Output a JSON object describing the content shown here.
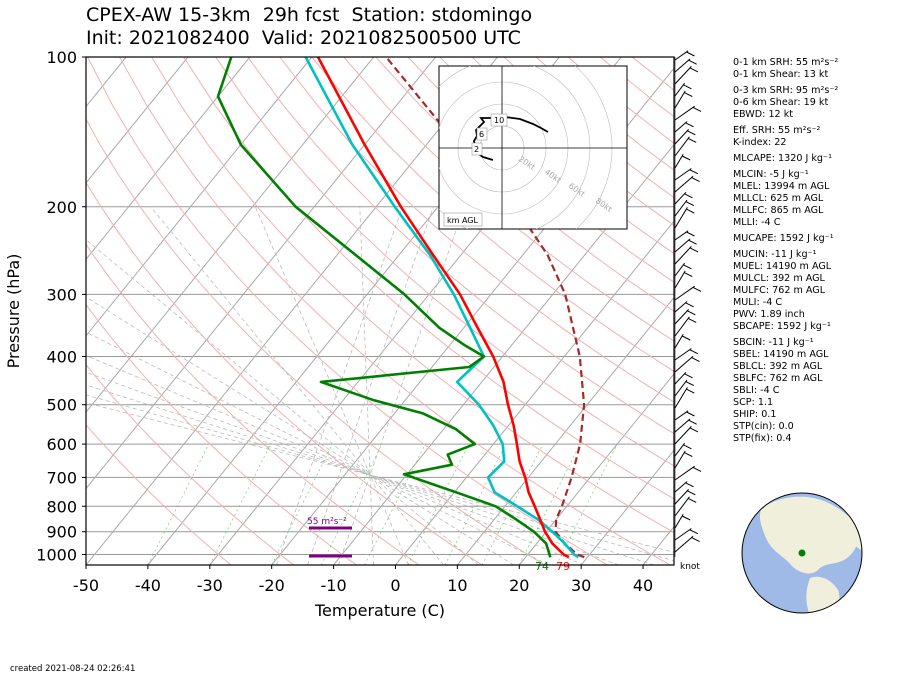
{
  "header": {
    "title_line1": "CPEX-AW 15-3km  29h fcst  Station: stdomingo",
    "title_line2": "Init: 2021082400  Valid: 2021082500500 UTC"
  },
  "footer": {
    "created": "created 2021-08-24 02:26:41"
  },
  "stats": [
    {
      "label": "0-1 km SRH: 55 m²s⁻²"
    },
    {
      "label": "0-1 km Shear: 13 kt"
    },
    {
      "label": "0-3 km SRH: 95 m²s⁻²",
      "gap": true
    },
    {
      "label": "0-6 km Shear: 19 kt"
    },
    {
      "label": "EBWD: 12 kt"
    },
    {
      "label": "Eff. SRH: 55 m²s⁻²",
      "gap": true
    },
    {
      "label": "K-index: 22"
    },
    {
      "label": "MLCAPE: 1320 J kg⁻¹",
      "gap": true
    },
    {
      "label": "MLCIN: -5 J kg⁻¹",
      "gap": true
    },
    {
      "label": "MLEL: 13994 m AGL"
    },
    {
      "label": "MLLCL: 625 m AGL"
    },
    {
      "label": "MLLFC: 865 m AGL"
    },
    {
      "label": "MLLI: -4 C"
    },
    {
      "label": "MUCAPE: 1592 J kg⁻¹",
      "gap": true
    },
    {
      "label": "MUCIN: -11 J kg⁻¹",
      "gap": true
    },
    {
      "label": "MUEL: 14190 m AGL"
    },
    {
      "label": "MULCL: 392 m AGL"
    },
    {
      "label": "MULFC: 762 m AGL"
    },
    {
      "label": "MULI: -4 C"
    },
    {
      "label": "PWV: 1.89 inch"
    },
    {
      "label": "SBCAPE: 1592 J kg⁻¹"
    },
    {
      "label": "SBCIN: -11 J kg⁻¹",
      "gap": true
    },
    {
      "label": "SBEL: 14190 m AGL"
    },
    {
      "label": "SBLCL: 392 m AGL"
    },
    {
      "label": "SBLFC: 762 m AGL"
    },
    {
      "label": "SBLI: -4 C"
    },
    {
      "label": "SCP: 1.1"
    },
    {
      "label": "SHIP: 0.1"
    },
    {
      "label": "STP(cin): 0.0"
    },
    {
      "label": "STP(fix): 0.4"
    }
  ],
  "chart_data": {
    "type": "line",
    "diagram": "skew-T log-p",
    "xlabel": "Temperature (C)",
    "ylabel": "Pressure (hPa)",
    "x_ticks": [
      -50,
      -40,
      -30,
      -20,
      -10,
      0,
      10,
      20,
      30,
      40
    ],
    "y_ticks": [
      100,
      200,
      300,
      400,
      500,
      600,
      700,
      800,
      900,
      1000
    ],
    "xlim": [
      -50,
      45
    ],
    "ylim": [
      1050,
      100
    ],
    "y_scale": "log",
    "grid": true,
    "series": [
      {
        "name": "temperature",
        "color": "#ff0000",
        "pressure": [
          1013,
          1000,
          950,
          900,
          850,
          800,
          750,
          700,
          650,
          600,
          550,
          500,
          450,
          400,
          350,
          300,
          250,
          200,
          150,
          100
        ],
        "values": [
          27.0,
          25.8,
          22.5,
          19.8,
          17.4,
          14.8,
          12.0,
          9.5,
          6.5,
          3.8,
          0.8,
          -2.8,
          -6.5,
          -11.5,
          -17.8,
          -25.0,
          -34.5,
          -46.0,
          -60.0,
          -79.0
        ]
      },
      {
        "name": "dewpoint",
        "color": "#008000",
        "pressure": [
          1013,
          1000,
          950,
          900,
          850,
          800,
          760,
          720,
          690,
          660,
          630,
          600,
          560,
          520,
          490,
          450,
          420,
          400,
          380,
          350,
          300,
          250,
          200,
          150,
          120,
          100
        ],
        "values": [
          24.0,
          23.5,
          21.5,
          18.0,
          13.5,
          8.5,
          2.0,
          -5.0,
          -10.5,
          -4.0,
          -6.0,
          -3.0,
          -8.0,
          -15.5,
          -25.0,
          -36.0,
          -14.0,
          -13.0,
          -17.5,
          -24.0,
          -34.0,
          -47.0,
          -63.0,
          -80.0,
          -90.0,
          -93.0
        ]
      },
      {
        "name": "virtual temperature",
        "color": "#00c0c0",
        "pressure": [
          1013,
          1000,
          950,
          900,
          850,
          800,
          750,
          700,
          650,
          600,
          550,
          500,
          450,
          400,
          350,
          300,
          250,
          200,
          150,
          100
        ],
        "values": [
          28.5,
          27.5,
          24.5,
          21.0,
          17.0,
          12.0,
          6.5,
          3.5,
          4.0,
          1.5,
          -2.5,
          -7.5,
          -14.0,
          -13.0,
          -19.0,
          -26.0,
          -35.0,
          -47.0,
          -62.0,
          -81.0
        ]
      },
      {
        "name": "parcel",
        "color": "#a52a2a",
        "style": "dashed",
        "pressure": [
          1013,
          1000,
          950,
          900,
          850,
          800,
          700,
          600,
          500,
          400,
          300,
          250,
          200,
          150,
          100
        ],
        "values": [
          29.5,
          28.0,
          24.5,
          21.5,
          20.0,
          19.2,
          17.0,
          14.0,
          9.5,
          2.5,
          -8.0,
          -16.0,
          -27.5,
          -45.0,
          -68.0
        ]
      }
    ],
    "surface_labels": [
      {
        "text": "74",
        "color": "#008000",
        "temperature": 23.5
      },
      {
        "text": "79",
        "color": "#ff0000",
        "temperature": 26.5
      }
    ],
    "srh_label": {
      "text": "55 m²s⁻²",
      "color": "#800080"
    },
    "wind_unit_label": "knot",
    "hodograph": {
      "label": "km AGL",
      "height_labels": [
        "10",
        "6",
        "2"
      ],
      "ring_labels": [
        "20kt",
        "40kt",
        "60kt",
        "80kt"
      ]
    }
  }
}
